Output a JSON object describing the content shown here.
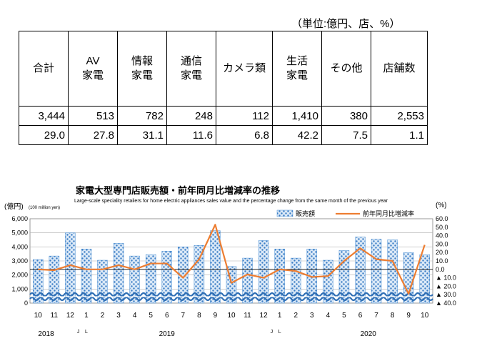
{
  "unit_note": "（単位:億円、店、%）",
  "table": {
    "headers": [
      [
        "合計"
      ],
      [
        "AV",
        "家電"
      ],
      [
        "情報",
        "家電"
      ],
      [
        "通信",
        "家電"
      ],
      [
        "カメラ類"
      ],
      [
        "生活",
        "家電"
      ],
      [
        "その他"
      ],
      [
        "店舗数"
      ]
    ],
    "sales": [
      "3,444",
      "513",
      "782",
      "248",
      "112",
      "1,410",
      "380",
      "2,553"
    ],
    "changes": [
      "29.0",
      "27.8",
      "31.1",
      "11.6",
      "6.8",
      "42.2",
      "7.5",
      "1.1"
    ]
  },
  "chart_data": {
    "type": "bar",
    "title": "家電大型専門店販売額・前年同月比増減率の推移",
    "subtitle": "Large-scale speciality retailers for home electric appliances sales value and the percentage change from the same month of the previous year",
    "ylabel_left": "(億円)",
    "ylabel_left_en": "(100 million yen)",
    "ylabel_right": "(%)",
    "categories": [
      "10",
      "11",
      "12",
      "1",
      "2",
      "3",
      "4",
      "5",
      "6",
      "7",
      "8",
      "9",
      "10",
      "11",
      "12",
      "1",
      "2",
      "3",
      "4",
      "5",
      "6",
      "7",
      "8",
      "9",
      "10"
    ],
    "year_labels": [
      {
        "label": "2018",
        "index": 0.5
      },
      {
        "label": "J",
        "index": 2.5
      },
      {
        "label": "L",
        "index": 3.0
      },
      {
        "label": "2019",
        "index": 8.0
      },
      {
        "label": "J",
        "index": 14.5
      },
      {
        "label": "L",
        "index": 15.0
      },
      {
        "label": "2020",
        "index": 20.5
      }
    ],
    "y_left": {
      "min": 0,
      "max": 6000,
      "ticks": [
        0,
        1000,
        2000,
        3000,
        4000,
        5000,
        6000
      ],
      "tick_labels": [
        "0",
        "1,000",
        "2,000",
        "3,000",
        "4,000",
        "5,000",
        "6,000"
      ]
    },
    "y_right": {
      "min": -40,
      "max": 60,
      "ticks": [
        60,
        50,
        40,
        30,
        20,
        10,
        0,
        -10,
        -20,
        -30,
        -40
      ],
      "tick_labels": [
        "60.0",
        "50.0",
        "40.0",
        "30.0",
        "20.0",
        "10.0",
        "0.0",
        "▲ 10.0",
        "▲ 20.0",
        "▲ 30.0",
        "▲ 40.0"
      ]
    },
    "series": [
      {
        "name": "販売額",
        "type": "bar",
        "axis": "left",
        "color": "#4a8fd4",
        "values": [
          3100,
          3350,
          5000,
          3850,
          3050,
          4250,
          3350,
          3450,
          3700,
          4000,
          4100,
          5150,
          2600,
          3200,
          4450,
          3850,
          3200,
          3850,
          3050,
          3750,
          4700,
          4550,
          4500,
          3600,
          3444
        ]
      },
      {
        "name": "前年同月比増減率",
        "type": "line",
        "axis": "right",
        "color": "#ed7d31",
        "values": [
          0.0,
          -1.0,
          5.0,
          0.0,
          0.0,
          5.0,
          0.0,
          7.0,
          7.0,
          -10.0,
          12.0,
          53.0,
          -16.0,
          -6.0,
          -10.0,
          0.0,
          -2.0,
          -9.0,
          -8.0,
          10.0,
          25.0,
          12.0,
          10.0,
          -29.0,
          29.0
        ]
      }
    ],
    "legend_position": "top-right"
  }
}
